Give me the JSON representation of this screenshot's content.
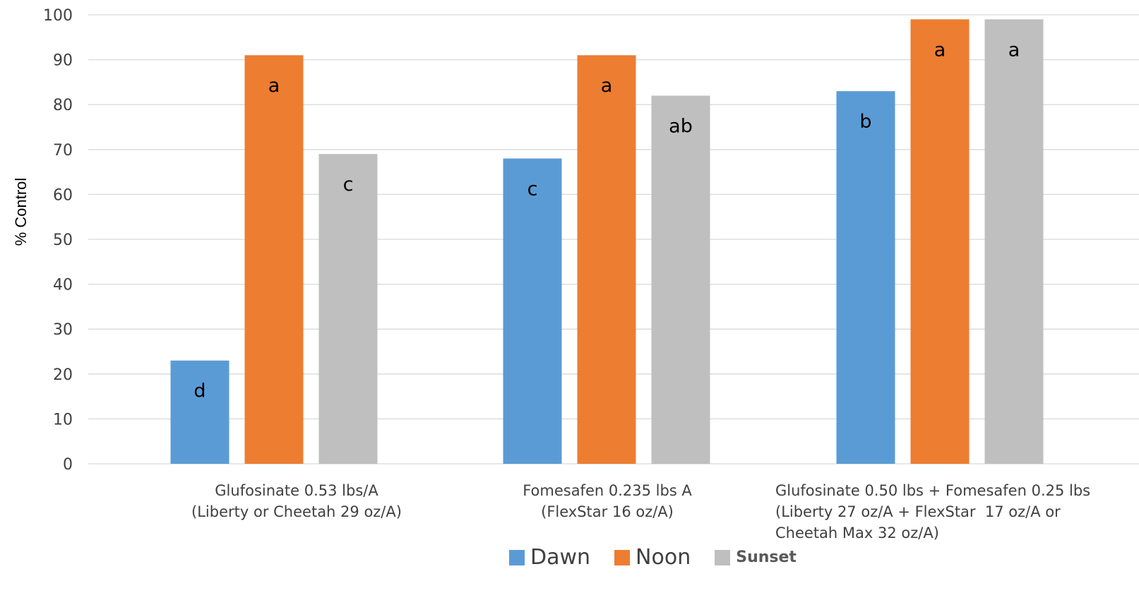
{
  "chart_data": {
    "type": "bar",
    "categories": [
      "Glufosinate 0.53 lbs/A\n(Liberty or Cheetah 29 oz/A)",
      "Fomesafen 0.235 lbs A\n(FlexStar 16 oz/A)",
      "Glufosinate 0.50 lbs + Fomesafen 0.25 lbs\n(Liberty 27 oz/A + FlexStar  17 oz/A or\nCheetah Max 32 oz/A)"
    ],
    "series": [
      {
        "name": "Dawn",
        "color": "#5B9BD5",
        "values": [
          23,
          68,
          83
        ],
        "labels": [
          "d",
          "c",
          "b"
        ]
      },
      {
        "name": "Noon",
        "color": "#ED7D31",
        "values": [
          91,
          91,
          99
        ],
        "labels": [
          "a",
          "a",
          "a"
        ]
      },
      {
        "name": "Sunset",
        "color": "#BFBFBF",
        "values": [
          69,
          82,
          99
        ],
        "labels": [
          "c",
          "ab",
          "a"
        ]
      }
    ],
    "ylabel": "% Control",
    "ylim": [
      0,
      100
    ],
    "yticks": [
      0,
      10,
      20,
      30,
      40,
      50,
      60,
      70,
      80,
      90,
      100
    ],
    "grid": true,
    "legend_position": "bottom"
  }
}
